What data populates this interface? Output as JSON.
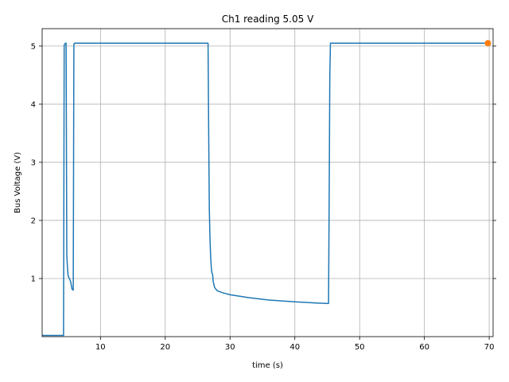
{
  "chart_data": {
    "type": "line",
    "title": "Ch1 reading 5.05 V",
    "xlabel": "time (s)",
    "ylabel": "Bus Voltage (V)",
    "xlim": [
      1.0,
      70.6
    ],
    "ylim": [
      0.0,
      5.3
    ],
    "xticks": [
      10,
      20,
      30,
      40,
      50,
      60,
      70
    ],
    "xtick_labels": [
      "10",
      "20",
      "30",
      "40",
      "50",
      "60",
      "70"
    ],
    "yticks": [
      1,
      2,
      3,
      4,
      5
    ],
    "ytick_labels": [
      "1",
      "2",
      "3",
      "4",
      "5"
    ],
    "grid": true,
    "ticks_right": true,
    "series": [
      {
        "color": "#1f77b4",
        "x": [
          1.0,
          4.2,
          4.3,
          4.4,
          4.6,
          4.7,
          4.8,
          4.9,
          5.0,
          5.2,
          5.4,
          5.6,
          5.8,
          5.9,
          6.0,
          6.2,
          10,
          15,
          20,
          25,
          26.6,
          26.7,
          26.8,
          26.9,
          27.0,
          27.1,
          27.2,
          27.3,
          27.4,
          27.6,
          28.0,
          29.0,
          30,
          33,
          36,
          40,
          43,
          45.2,
          45.3,
          45.4,
          45.5,
          50,
          55,
          60,
          65,
          69.8
        ],
        "y": [
          0.02,
          0.02,
          0.02,
          5.02,
          5.05,
          5.05,
          1.4,
          1.2,
          1.05,
          1.0,
          0.95,
          0.82,
          0.8,
          5.03,
          5.05,
          5.05,
          5.05,
          5.05,
          5.05,
          5.05,
          5.05,
          3.5,
          2.2,
          1.7,
          1.4,
          1.2,
          1.1,
          1.07,
          0.95,
          0.85,
          0.79,
          0.75,
          0.72,
          0.67,
          0.63,
          0.6,
          0.58,
          0.57,
          2.4,
          4.5,
          5.05,
          5.05,
          5.05,
          5.05,
          5.05,
          5.05
        ]
      },
      {
        "color": "#ff7f0e",
        "type": "scatter",
        "x": [
          69.8
        ],
        "y": [
          5.05
        ]
      }
    ]
  }
}
